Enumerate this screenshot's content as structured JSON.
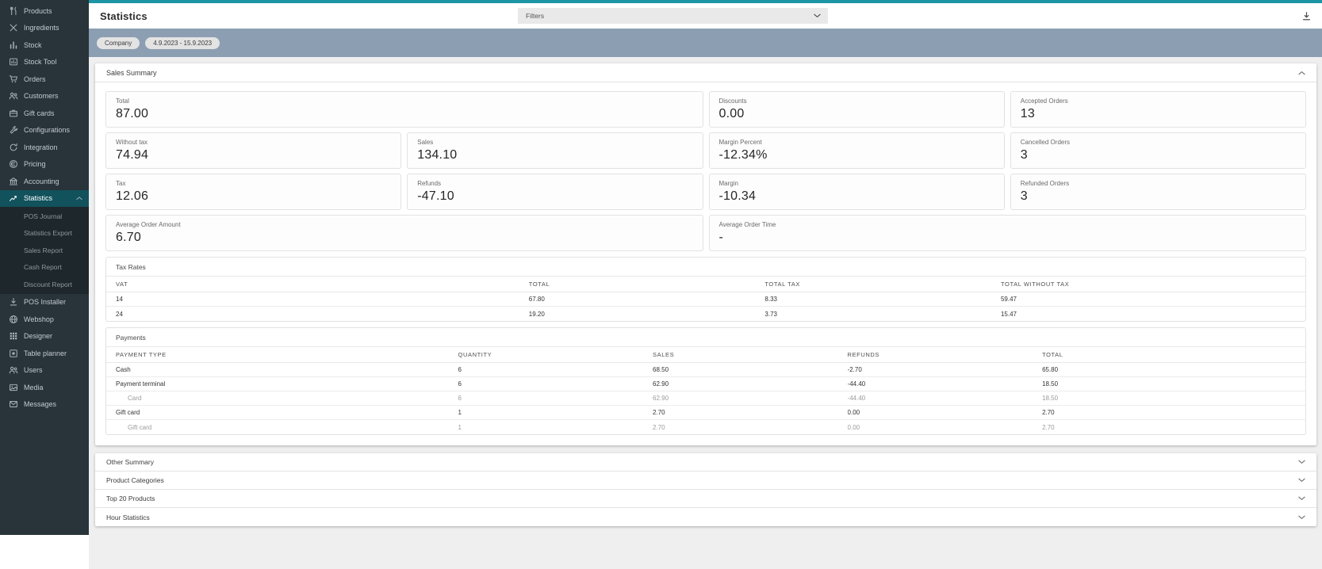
{
  "colors": {
    "accent_teal": "#1d95a4",
    "sidebar_bg": "#28333a",
    "sidebar_selected_bg": "#11525c",
    "filter_band_bg": "#8c9eb2",
    "content_bg": "#efefef"
  },
  "sidebar": {
    "items": [
      {
        "label": "Products",
        "icon": "utensils-icon"
      },
      {
        "label": "Ingredients",
        "icon": "crossed-utensils-icon"
      },
      {
        "label": "Stock",
        "icon": "bar-chart-icon"
      },
      {
        "label": "Stock Tool",
        "icon": "chart-box-icon"
      },
      {
        "label": "Orders",
        "icon": "cart-icon"
      },
      {
        "label": "Customers",
        "icon": "people-icon"
      },
      {
        "label": "Gift cards",
        "icon": "gift-card-icon"
      },
      {
        "label": "Configurations",
        "icon": "wrench-icon"
      },
      {
        "label": "Integration",
        "icon": "sync-icon"
      },
      {
        "label": "Pricing",
        "icon": "coin-icon"
      },
      {
        "label": "Accounting",
        "icon": "bank-icon"
      },
      {
        "label": "Statistics",
        "icon": "line-chart-icon",
        "selected": true,
        "children": [
          "POS Journal",
          "Statistics Export",
          "Sales Report",
          "Cash Report",
          "Discount Report"
        ]
      },
      {
        "label": "POS Installer",
        "icon": "download-icon"
      },
      {
        "label": "Webshop",
        "icon": "globe-icon"
      },
      {
        "label": "Designer",
        "icon": "grid-icon"
      },
      {
        "label": "Table planner",
        "icon": "table-icon"
      },
      {
        "label": "Users",
        "icon": "users-icon"
      },
      {
        "label": "Media",
        "icon": "image-icon"
      },
      {
        "label": "Messages",
        "icon": "envelope-icon"
      }
    ]
  },
  "header": {
    "title": "Statistics",
    "filters_label": "Filters"
  },
  "filter_bar": {
    "chips": [
      "Company",
      "4.9.2023 - 15.9.2023"
    ]
  },
  "sales_summary": {
    "title": "Sales Summary",
    "cards": [
      {
        "label": "Total",
        "value": "87.00",
        "span": 2
      },
      {
        "label": "Discounts",
        "value": "0.00"
      },
      {
        "label": "Accepted Orders",
        "value": "13"
      },
      {
        "label": "Without tax",
        "value": "74.94"
      },
      {
        "label": "Sales",
        "value": "134.10"
      },
      {
        "label": "Margin Percent",
        "value": "-12.34%"
      },
      {
        "label": "Cancelled Orders",
        "value": "3"
      },
      {
        "label": "Tax",
        "value": "12.06"
      },
      {
        "label": "Refunds",
        "value": "-47.10"
      },
      {
        "label": "Margin",
        "value": "-10.34"
      },
      {
        "label": "Refunded Orders",
        "value": "3"
      },
      {
        "label": "Average Order Amount",
        "value": "6.70",
        "span": 2
      },
      {
        "label": "Average Order Time",
        "value": "-",
        "span": 2
      }
    ],
    "tax_rates": {
      "title": "Tax Rates",
      "columns": [
        "VAT",
        "TOTAL",
        "TOTAL TAX",
        "TOTAL WITHOUT TAX"
      ],
      "rows": [
        {
          "cells": [
            "14",
            "67.80",
            "8.33",
            "59.47"
          ],
          "sub": false
        },
        {
          "cells": [
            "24",
            "19.20",
            "3.73",
            "15.47"
          ],
          "sub": false
        }
      ]
    },
    "payments": {
      "title": "Payments",
      "columns": [
        "PAYMENT TYPE",
        "QUANTITY",
        "SALES",
        "REFUNDS",
        "TOTAL"
      ],
      "rows": [
        {
          "cells": [
            "Cash",
            "6",
            "68.50",
            "-2.70",
            "65.80"
          ],
          "sub": false
        },
        {
          "cells": [
            "Payment terminal",
            "6",
            "62.90",
            "-44.40",
            "18.50"
          ],
          "sub": false
        },
        {
          "cells": [
            "Card",
            "6",
            "62.90",
            "-44.40",
            "18.50"
          ],
          "sub": true
        },
        {
          "cells": [
            "Gift card",
            "1",
            "2.70",
            "0.00",
            "2.70"
          ],
          "sub": false
        },
        {
          "cells": [
            "Gift card",
            "1",
            "2.70",
            "0.00",
            "2.70"
          ],
          "sub": true
        }
      ]
    }
  },
  "collapsed_sections": [
    "Other Summary",
    "Product Categories",
    "Top 20 Products",
    "Hour Statistics"
  ]
}
